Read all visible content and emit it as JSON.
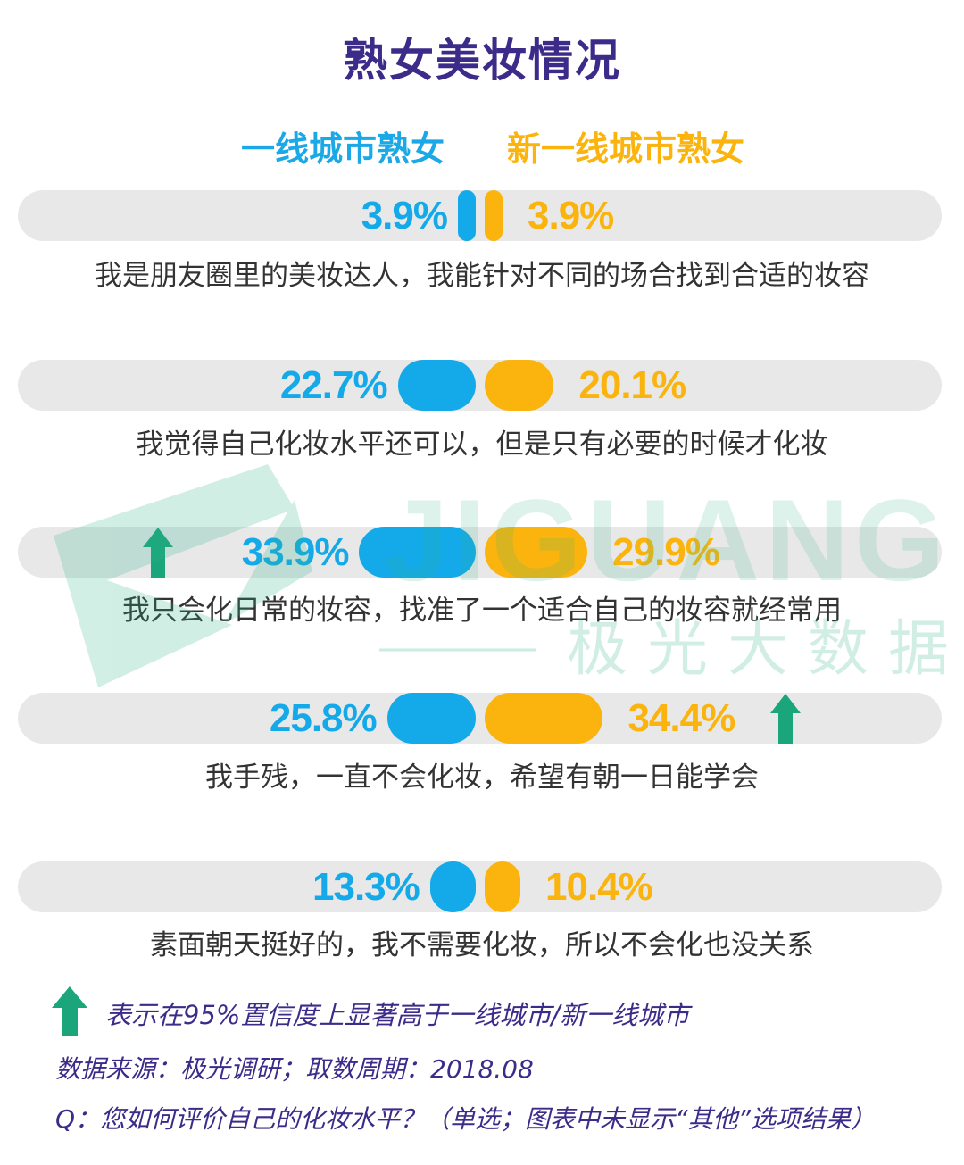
{
  "title": "熟女美妆情况",
  "legend": {
    "series_a": "一线城市熟女",
    "series_b": "新一线城市熟女"
  },
  "colors": {
    "series_a": "#14a9e8",
    "series_b": "#fbb40d",
    "up_arrow": "#1aa57a",
    "title": "#3d2b8a"
  },
  "chart_data": {
    "type": "bar",
    "title": "熟女美妆情况",
    "categories": [
      "我是朋友圈里的美妆达人，我能针对不同的场合找到合适的妆容",
      "我觉得自己化妆水平还可以，但是只有必要的时候才化妆",
      "我只会化日常的妆容，找准了一个适合自己的妆容就经常用",
      "我手残，一直不会化妆，希望有朝一日能学会",
      "素面朝天挺好的，我不需要化妆，所以不会化也没关系"
    ],
    "series": [
      {
        "name": "一线城市熟女",
        "values": [
          3.9,
          22.7,
          33.9,
          25.8,
          13.3
        ]
      },
      {
        "name": "新一线城市熟女",
        "values": [
          3.9,
          20.1,
          29.9,
          34.4,
          10.4
        ]
      }
    ],
    "value_labels": {
      "a": [
        "3.9%",
        "22.7%",
        "33.9%",
        "25.8%",
        "13.3%"
      ],
      "b": [
        "3.9%",
        "20.1%",
        "29.9%",
        "34.4%",
        "10.4%"
      ]
    },
    "significant_higher": {
      "a": [
        false,
        false,
        true,
        false,
        false
      ],
      "b": [
        false,
        false,
        false,
        true,
        false
      ]
    },
    "unit": "%",
    "legend_position": "top"
  },
  "watermark": {
    "brand": "JIGUANG",
    "brand_cn": "极光大数据"
  },
  "notes": {
    "arrow_note": "表示在95%置信度上显著高于一线城市/新一线城市",
    "source": "数据来源：极光调研；取数周期：2018.08",
    "question": "Q：您如何评价自己的化妆水平？（单选；图表中未显示“其他”选项结果）"
  }
}
